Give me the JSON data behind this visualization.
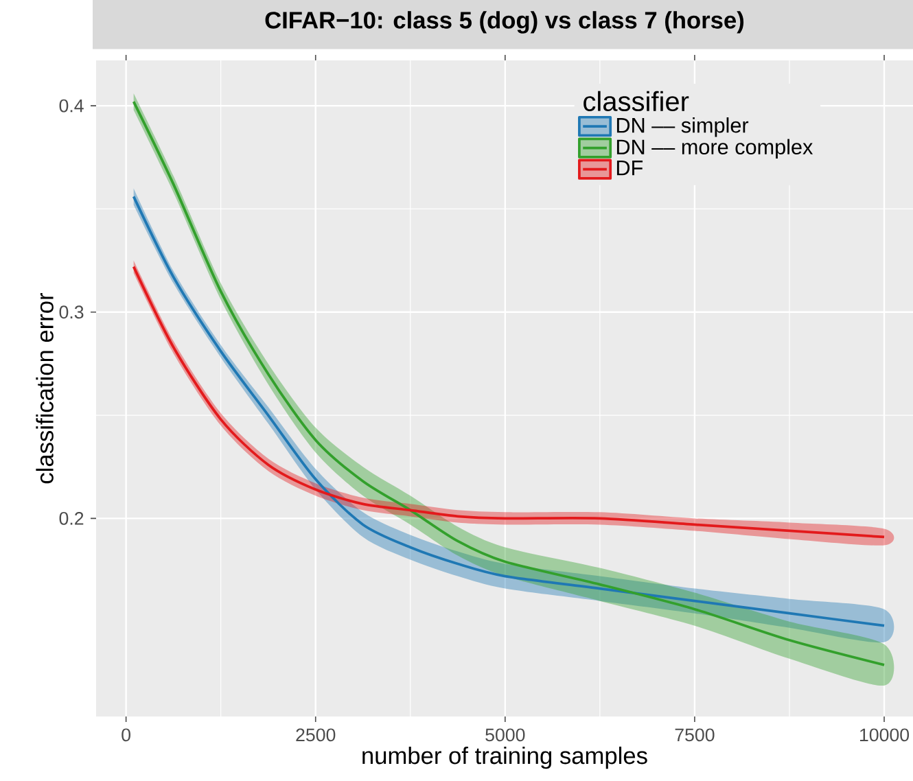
{
  "chart_data": {
    "type": "line",
    "title": "CIFAR−10: class 5 (dog) vs class 7 (horse)",
    "xlabel": "number of training samples",
    "ylabel": "classification error",
    "legend_title": "classifier",
    "legend": "top right",
    "grid": true,
    "xlim": [
      -395,
      10380
    ],
    "ylim": [
      0.104,
      0.422
    ],
    "xticks": [
      0,
      2500,
      5000,
      7500,
      10000
    ],
    "yticks": [
      0.2,
      0.3,
      0.4
    ],
    "series": [
      {
        "name": "DN –– simpler",
        "color": "#1f78b4",
        "x": [
          100,
          625,
          1250,
          1875,
          2500,
          3125,
          3750,
          4375,
          5000,
          6250,
          7500,
          8750,
          10000
        ],
        "values": [
          0.356,
          0.317,
          0.281,
          0.25,
          0.219,
          0.197,
          0.186,
          0.178,
          0.172,
          0.166,
          0.16,
          0.154,
          0.148
        ],
        "lower": [
          0.352,
          0.314,
          0.278,
          0.246,
          0.214,
          0.191,
          0.18,
          0.172,
          0.166,
          0.16,
          0.154,
          0.147,
          0.14
        ],
        "upper": [
          0.36,
          0.32,
          0.284,
          0.254,
          0.224,
          0.203,
          0.192,
          0.184,
          0.178,
          0.172,
          0.166,
          0.161,
          0.156
        ]
      },
      {
        "name": "DN –– more complex",
        "color": "#33a02c",
        "x": [
          100,
          625,
          1250,
          1875,
          2500,
          3125,
          3750,
          4375,
          5000,
          6250,
          7500,
          8750,
          10000
        ],
        "values": [
          0.402,
          0.362,
          0.31,
          0.27,
          0.238,
          0.218,
          0.204,
          0.189,
          0.179,
          0.168,
          0.156,
          0.141,
          0.129
        ],
        "lower": [
          0.398,
          0.358,
          0.306,
          0.265,
          0.232,
          0.211,
          0.197,
          0.182,
          0.172,
          0.16,
          0.148,
          0.132,
          0.119
        ],
        "upper": [
          0.406,
          0.366,
          0.314,
          0.275,
          0.244,
          0.225,
          0.211,
          0.196,
          0.186,
          0.176,
          0.164,
          0.15,
          0.139
        ]
      },
      {
        "name": "DF",
        "color": "#e31a1c",
        "x": [
          100,
          625,
          1250,
          1875,
          2500,
          3125,
          3750,
          4375,
          5000,
          6250,
          7500,
          8750,
          10000
        ],
        "values": [
          0.322,
          0.283,
          0.248,
          0.226,
          0.214,
          0.207,
          0.204,
          0.201,
          0.2,
          0.2,
          0.197,
          0.194,
          0.191
        ],
        "lower": [
          0.319,
          0.28,
          0.245,
          0.223,
          0.211,
          0.204,
          0.201,
          0.198,
          0.197,
          0.197,
          0.194,
          0.19,
          0.187
        ],
        "upper": [
          0.325,
          0.286,
          0.251,
          0.229,
          0.217,
          0.21,
          0.207,
          0.204,
          0.203,
          0.203,
          0.2,
          0.198,
          0.195
        ]
      }
    ]
  }
}
